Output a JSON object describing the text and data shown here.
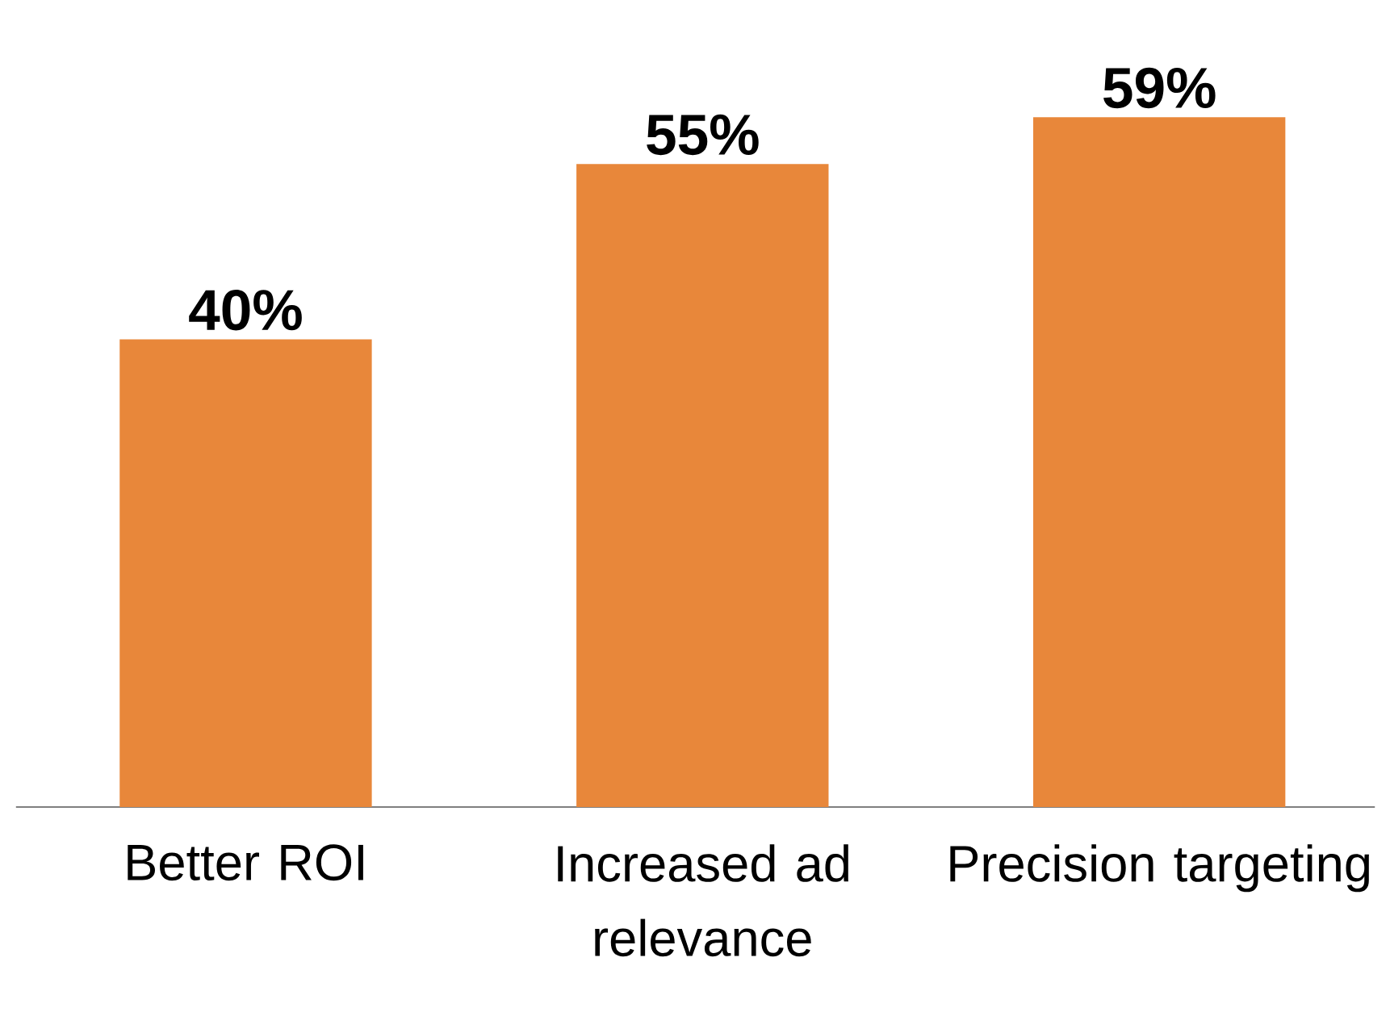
{
  "chart_data": {
    "type": "bar",
    "categories": [
      "Better ROI",
      "Increased ad relevance",
      "Precision targeting"
    ],
    "values": [
      40,
      55,
      59
    ],
    "color": "#e8873a",
    "value_labels": [
      "40%",
      "55%",
      "59%"
    ]
  }
}
